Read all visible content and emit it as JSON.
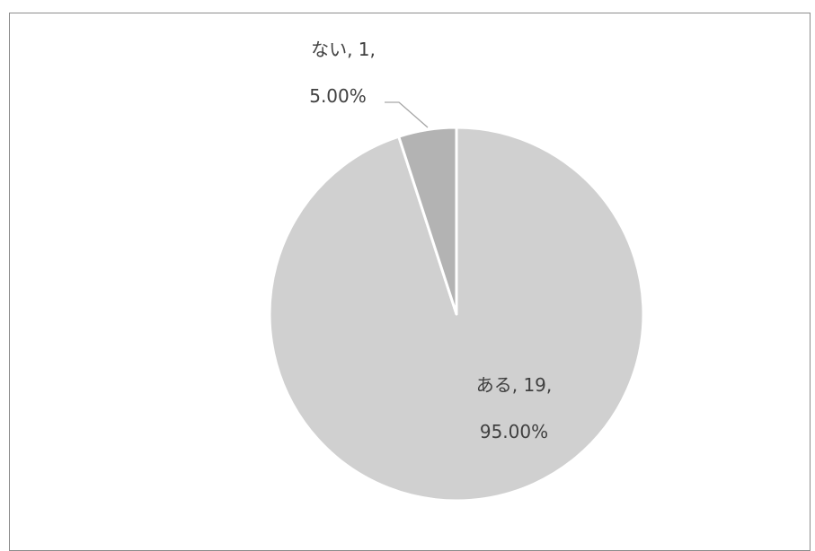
{
  "chart_data": {
    "type": "pie",
    "title": "",
    "slices": [
      {
        "name": "ある",
        "value": 19,
        "percent": "95.00%",
        "label_line1": "ある, 19,",
        "label_line2": "95.00%",
        "color": "#d0d0d0"
      },
      {
        "name": "ない",
        "value": 1,
        "percent": "5.00%",
        "label_line1": "ない, 1,",
        "label_line2": "5.00%",
        "color": "#b3b3b3"
      }
    ],
    "legend": "none",
    "slice_border_color": "#ffffff",
    "leader_line_color": "#a6a6a6"
  }
}
